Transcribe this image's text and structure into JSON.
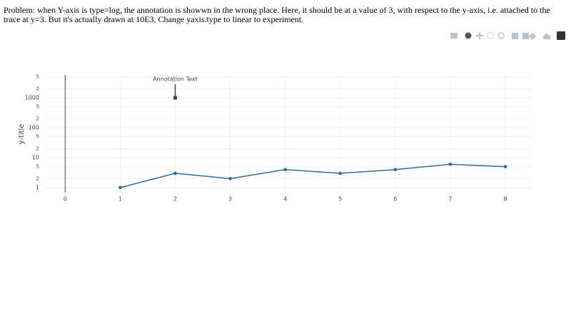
{
  "problem_text": "Problem: when Y-axis is type=log, the annotation is showwn in the wrong place. Here, it should be at a value of 3, with respect to the y-axis, i.e. attached to the trace at y=3. But it's actually drawn at 10E3. Change yaxis.type to linear to experiment.",
  "chart_data": {
    "type": "line",
    "y_title": "y-title",
    "x": [
      1,
      2,
      3,
      4,
      5,
      6,
      7,
      8
    ],
    "series": [
      {
        "color": "#2b6f96",
        "values": [
          1,
          3,
          2,
          4,
          3,
          4,
          6,
          5
        ]
      }
    ],
    "xlim": [
      -0.38,
      8.48
    ],
    "xticks": [
      0,
      1,
      2,
      3,
      4,
      5,
      6,
      7,
      8
    ],
    "ylim": [
      0.68,
      5800
    ],
    "ylog": true,
    "yticks": [
      1,
      {
        "value": 2,
        "label": "2"
      },
      {
        "value": 5,
        "label": "5"
      },
      10,
      {
        "value": 20,
        "label": "2"
      },
      {
        "value": 50,
        "label": "5"
      },
      100,
      {
        "value": 200,
        "label": "2"
      },
      {
        "value": 500,
        "label": "5"
      },
      1000,
      {
        "value": 2000,
        "label": "2"
      },
      {
        "value": 5000,
        "label": "5"
      }
    ],
    "grid": true,
    "annotations": [
      {
        "text": "Annotation Text",
        "x": 2,
        "y": 1000
      }
    ]
  }
}
